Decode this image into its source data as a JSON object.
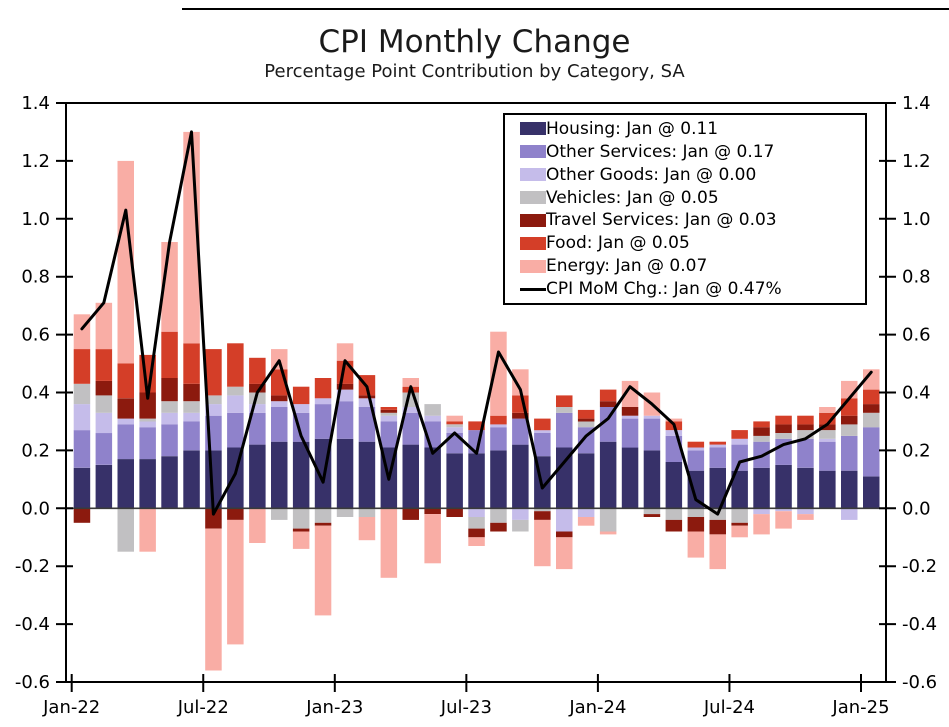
{
  "chart_data": {
    "type": "bar",
    "stacked": true,
    "overlay_line": true,
    "title": "CPI Monthly Change",
    "subtitle": "Percentage Point Contribution by Category, SA",
    "grid": false,
    "legend_position": "top-right-inside",
    "ylim": [
      -0.6,
      1.4
    ],
    "y_tick_labels": [
      "1.4",
      "1.2",
      "1.0",
      "0.8",
      "0.6",
      "0.4",
      "0.2",
      "0.0",
      "-0.2",
      "-0.4",
      "-0.6"
    ],
    "y_tick_values": [
      1.4,
      1.2,
      1.0,
      0.8,
      0.6,
      0.4,
      0.2,
      0.0,
      -0.2,
      -0.4,
      -0.6
    ],
    "x_ticks": [
      {
        "index": 0,
        "label": "Jan-22"
      },
      {
        "index": 6,
        "label": "Jul-22"
      },
      {
        "index": 12,
        "label": "Jan-23"
      },
      {
        "index": 18,
        "label": "Jul-23"
      },
      {
        "index": 24,
        "label": "Jan-24"
      },
      {
        "index": 30,
        "label": "Jul-24"
      },
      {
        "index": 36,
        "label": "Jan-25"
      }
    ],
    "categories": [
      "Jan-22",
      "Feb-22",
      "Mar-22",
      "Apr-22",
      "May-22",
      "Jun-22",
      "Jul-22",
      "Aug-22",
      "Sep-22",
      "Oct-22",
      "Nov-22",
      "Dec-22",
      "Jan-23",
      "Feb-23",
      "Mar-23",
      "Apr-23",
      "May-23",
      "Jun-23",
      "Jul-23",
      "Aug-23",
      "Sep-23",
      "Oct-23",
      "Nov-23",
      "Dec-23",
      "Jan-24",
      "Feb-24",
      "Mar-24",
      "Apr-24",
      "May-24",
      "Jun-24",
      "Jul-24",
      "Aug-24",
      "Sep-24",
      "Oct-24",
      "Nov-24",
      "Dec-24",
      "Jan-25"
    ],
    "series": [
      {
        "name": "Housing",
        "label": "Housing: Jan @ 0.11",
        "color": "#373169",
        "values": [
          0.14,
          0.15,
          0.17,
          0.17,
          0.18,
          0.2,
          0.2,
          0.21,
          0.22,
          0.23,
          0.23,
          0.24,
          0.24,
          0.23,
          0.21,
          0.22,
          0.21,
          0.19,
          0.19,
          0.2,
          0.22,
          0.18,
          0.21,
          0.19,
          0.23,
          0.21,
          0.2,
          0.16,
          0.13,
          0.14,
          0.13,
          0.14,
          0.15,
          0.14,
          0.13,
          0.13,
          0.11
        ]
      },
      {
        "name": "Other Services",
        "label": "Other Services: Jan @ 0.17",
        "color": "#8F82CB",
        "values": [
          0.13,
          0.11,
          0.12,
          0.11,
          0.11,
          0.1,
          0.12,
          0.12,
          0.11,
          0.12,
          0.1,
          0.12,
          0.13,
          0.12,
          0.09,
          0.11,
          0.09,
          0.07,
          0.08,
          0.08,
          0.09,
          0.08,
          0.12,
          0.09,
          0.12,
          0.1,
          0.11,
          0.09,
          0.07,
          0.07,
          0.09,
          0.09,
          0.09,
          0.1,
          0.1,
          0.12,
          0.17
        ]
      },
      {
        "name": "Other Goods",
        "label": "Other Goods: Jan @ 0.00",
        "color": "#C5BCEA",
        "values": [
          0.09,
          0.07,
          0.02,
          0.02,
          0.04,
          0.03,
          0.04,
          0.06,
          0.03,
          0.02,
          0.03,
          0.02,
          0.04,
          0.03,
          0.02,
          0.02,
          0.02,
          0.02,
          -0.03,
          0.01,
          -0.04,
          0.01,
          -0.08,
          -0.03,
          0.0,
          0.01,
          0.01,
          0.02,
          0.01,
          0.01,
          0.02,
          -0.02,
          -0.01,
          -0.02,
          0.01,
          -0.04,
          0.0
        ]
      },
      {
        "name": "Vehicles",
        "label": "Vehicles: Jan @ 0.05",
        "color": "#C1C0C2",
        "values": [
          0.07,
          0.06,
          -0.15,
          0.01,
          0.04,
          0.04,
          0.03,
          0.03,
          0.04,
          -0.04,
          -0.07,
          -0.05,
          -0.03,
          -0.03,
          0.01,
          0.05,
          0.04,
          0.01,
          -0.04,
          -0.05,
          -0.04,
          -0.01,
          0.02,
          0.02,
          -0.08,
          0.0,
          -0.02,
          -0.04,
          -0.03,
          -0.04,
          -0.05,
          0.02,
          0.02,
          0.03,
          0.03,
          0.04,
          0.05
        ]
      },
      {
        "name": "Travel Services",
        "label": "Travel Services: Jan @ 0.03",
        "color": "#8C1A0E",
        "values": [
          -0.05,
          0.05,
          0.07,
          0.09,
          0.08,
          0.06,
          -0.07,
          -0.04,
          0.03,
          0.02,
          -0.01,
          -0.01,
          0.02,
          0.01,
          0.01,
          -0.04,
          -0.02,
          -0.03,
          -0.03,
          -0.03,
          0.02,
          -0.03,
          -0.02,
          0.01,
          0.02,
          0.03,
          -0.01,
          -0.04,
          -0.05,
          -0.05,
          -0.01,
          0.03,
          0.03,
          0.02,
          0.02,
          0.03,
          0.03
        ]
      },
      {
        "name": "Food",
        "label": "Food: Jan @ 0.05",
        "color": "#D43E28",
        "values": [
          0.12,
          0.11,
          0.12,
          0.13,
          0.16,
          0.14,
          0.16,
          0.15,
          0.09,
          0.09,
          0.06,
          0.07,
          0.08,
          0.07,
          0.01,
          0.02,
          0.0,
          0.01,
          0.03,
          0.03,
          0.06,
          0.04,
          0.04,
          0.03,
          0.04,
          0.0,
          0.0,
          0.03,
          0.02,
          0.01,
          0.03,
          0.02,
          0.03,
          0.03,
          0.04,
          0.06,
          0.05
        ]
      },
      {
        "name": "Energy",
        "label": "Energy: Jan @ 0.07",
        "color": "#F9ADA5",
        "values": [
          0.12,
          0.16,
          0.7,
          -0.15,
          0.31,
          0.73,
          -0.49,
          -0.43,
          -0.12,
          0.07,
          -0.06,
          -0.31,
          0.06,
          -0.08,
          -0.24,
          0.03,
          -0.17,
          0.02,
          -0.03,
          0.29,
          0.09,
          -0.16,
          -0.11,
          -0.03,
          -0.01,
          0.09,
          0.08,
          0.01,
          -0.09,
          -0.12,
          -0.04,
          -0.07,
          -0.06,
          -0.02,
          0.02,
          0.06,
          0.07
        ]
      }
    ],
    "line_series": {
      "name": "CPI MoM Chg.",
      "label": "CPI MoM Chg.: Jan @ 0.47%",
      "color": "#000000",
      "values": [
        0.62,
        0.71,
        1.03,
        0.38,
        0.92,
        1.3,
        -0.02,
        0.12,
        0.4,
        0.51,
        0.25,
        0.09,
        0.51,
        0.42,
        0.1,
        0.42,
        0.19,
        0.26,
        0.19,
        0.54,
        0.41,
        0.07,
        0.16,
        0.25,
        0.31,
        0.42,
        0.36,
        0.29,
        0.03,
        -0.02,
        0.16,
        0.18,
        0.22,
        0.24,
        0.29,
        0.38,
        0.47
      ]
    }
  }
}
